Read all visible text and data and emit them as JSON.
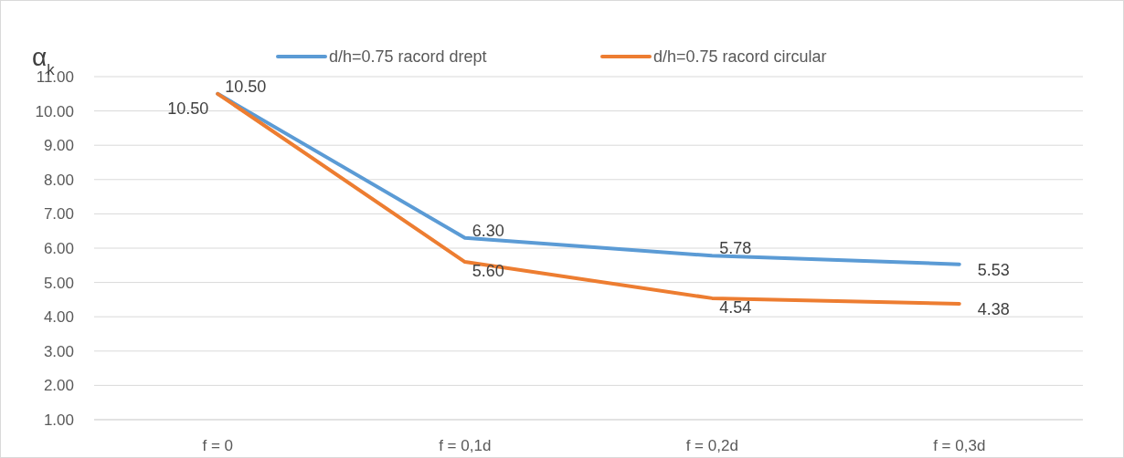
{
  "chart_data": {
    "type": "line",
    "ylabel": "α$_{k}$",
    "categories": [
      "f = 0",
      "f = 0,1d",
      "f = 0,2d",
      "f = 0,3d"
    ],
    "series": [
      {
        "name": "d/h=0.75 racord drept",
        "color": "#5b9bd5",
        "values": [
          10.5,
          6.3,
          5.78,
          5.53
        ],
        "value_labels": [
          "10.50",
          "6.30",
          "5.78",
          "5.53"
        ]
      },
      {
        "name": "d/h=0.75 racord circular",
        "color": "#ed7d31",
        "values": [
          10.5,
          5.6,
          4.54,
          4.38
        ],
        "value_labels": [
          "10.50",
          "5.60",
          "4.54",
          "4.38"
        ]
      }
    ],
    "ylim": [
      1,
      11
    ],
    "yticks": [
      {
        "value": 1,
        "label": "1.00"
      },
      {
        "value": 2,
        "label": "2.00"
      },
      {
        "value": 3,
        "label": "3.00"
      },
      {
        "value": 4,
        "label": "4.00"
      },
      {
        "value": 5,
        "label": "5.00"
      },
      {
        "value": 6,
        "label": "6.00"
      },
      {
        "value": 7,
        "label": "7.00"
      },
      {
        "value": 8,
        "label": "8.00"
      },
      {
        "value": 9,
        "label": "9.00"
      },
      {
        "value": 10,
        "label": "10.00"
      },
      {
        "value": 11,
        "label": "11.00"
      }
    ],
    "grid": "y",
    "legend": "top",
    "marker": "none",
    "line_style": "solid"
  }
}
